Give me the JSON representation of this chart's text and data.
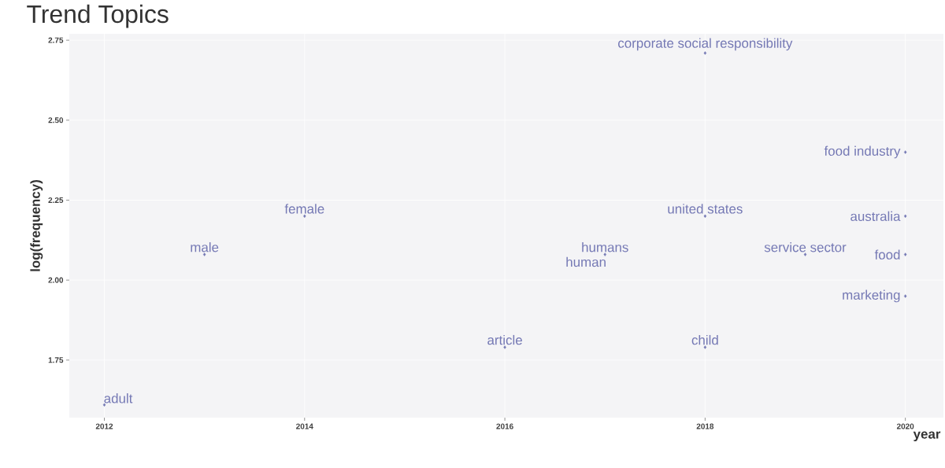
{
  "chart_data": {
    "type": "scatter",
    "title": "Trend Topics",
    "xlabel": "year",
    "ylabel": "log(frequency)",
    "xlim": [
      2011.65,
      2020.38
    ],
    "ylim": [
      1.57,
      2.77
    ],
    "xticks": [
      2012,
      2014,
      2016,
      2018,
      2020
    ],
    "yticks": [
      {
        "value": 1.75,
        "label": "1.75"
      },
      {
        "value": 2.0,
        "label": "2.00"
      },
      {
        "value": 2.25,
        "label": "2.25"
      },
      {
        "value": 2.5,
        "label": "2.50"
      },
      {
        "value": 2.75,
        "label": "2.75"
      }
    ],
    "grid": true,
    "marker": "diamond",
    "series": [
      {
        "color": "#7478b4",
        "x": [
          2012,
          2013,
          2014,
          2016,
          2017,
          2018,
          2018,
          2018,
          2019,
          2020,
          2020,
          2020,
          2020
        ],
        "values": [
          1.61,
          2.08,
          2.2,
          1.79,
          2.08,
          1.79,
          2.2,
          2.71,
          2.08,
          2.4,
          2.2,
          2.08,
          1.95
        ]
      }
    ],
    "annotations": [
      {
        "text": "adult",
        "x": 2012,
        "y": 1.61
      },
      {
        "text": "male",
        "x": 2013,
        "y": 2.08
      },
      {
        "text": "female",
        "x": 2014,
        "y": 2.2
      },
      {
        "text": "article",
        "x": 2016,
        "y": 1.79
      },
      {
        "text": "humans",
        "x": 2017,
        "y": 2.08
      },
      {
        "text": "human",
        "x": 2017,
        "y": 2.08
      },
      {
        "text": "child",
        "x": 2018,
        "y": 1.79
      },
      {
        "text": "united states",
        "x": 2018,
        "y": 2.2
      },
      {
        "text": "corporate social responsibility",
        "x": 2018,
        "y": 2.71
      },
      {
        "text": "service sector",
        "x": 2019,
        "y": 2.08
      },
      {
        "text": "food industry",
        "x": 2020,
        "y": 2.4
      },
      {
        "text": "australia",
        "x": 2020,
        "y": 2.2
      },
      {
        "text": "food",
        "x": 2020,
        "y": 2.08
      },
      {
        "text": "marketing",
        "x": 2020,
        "y": 1.95
      }
    ]
  }
}
